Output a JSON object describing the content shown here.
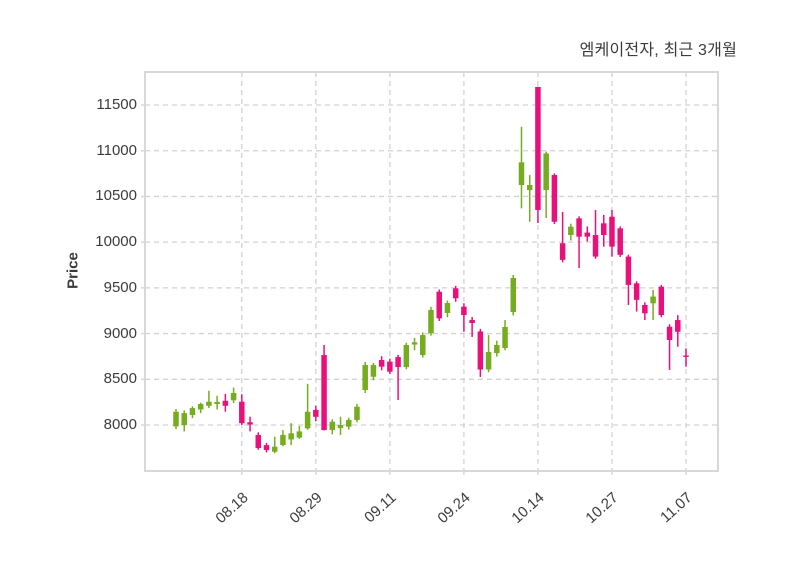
{
  "chart": {
    "title": "엠케이전자, 최근 3개월",
    "y_axis_label": "Price"
  },
  "colors": {
    "up": "#76ac1f",
    "down": "#e8117c",
    "grid": "#d2d2d2",
    "plot_border": "#d8d8d8",
    "text": "#3c3c3c",
    "background": "#ffffff"
  },
  "chart_data": {
    "type": "candlestick",
    "title": "엠케이전자, 최근 3개월",
    "ylabel": "Price",
    "ylim": [
      7497,
      11861
    ],
    "grid": "dashed",
    "legend_position": "none",
    "y_ticks": [
      8000,
      8500,
      9000,
      9500,
      10000,
      10500,
      11000,
      11500
    ],
    "x_tick_labels": [
      "08.18",
      "08.29",
      "09.11",
      "09.24",
      "10.14",
      "10.27",
      "11.07"
    ],
    "x_tick_indices": [
      8,
      17,
      26,
      35,
      44,
      53,
      62
    ],
    "up_color": "#76ac1f",
    "down_color": "#e8117c",
    "ohlc_order": [
      "open",
      "high",
      "low",
      "close"
    ],
    "candles": [
      [
        7985,
        8175,
        7955,
        8145
      ],
      [
        8000,
        8160,
        7930,
        8130
      ],
      [
        8110,
        8205,
        8075,
        8185
      ],
      [
        8170,
        8245,
        8130,
        8230
      ],
      [
        8210,
        8375,
        8185,
        8255
      ],
      [
        8230,
        8320,
        8170,
        8252
      ],
      [
        8265,
        8340,
        8145,
        8210
      ],
      [
        8270,
        8410,
        8240,
        8350
      ],
      [
        8255,
        8336,
        8000,
        8020
      ],
      [
        8030,
        8091,
        7930,
        8005
      ],
      [
        7890,
        7920,
        7730,
        7748
      ],
      [
        7780,
        7805,
        7700,
        7727
      ],
      [
        7708,
        7872,
        7690,
        7763
      ],
      [
        7781,
        7945,
        7768,
        7891
      ],
      [
        7842,
        8020,
        7781,
        7909
      ],
      [
        7862,
        7990,
        7848,
        7930
      ],
      [
        7963,
        8450,
        7948,
        8145
      ],
      [
        8165,
        8210,
        8040,
        8090
      ],
      [
        8765,
        8875,
        7940,
        7945
      ],
      [
        7945,
        8062,
        7898,
        8036
      ],
      [
        7966,
        8091,
        7891,
        8000
      ],
      [
        7982,
        8080,
        7950,
        8055
      ],
      [
        8055,
        8230,
        8030,
        8200
      ],
      [
        8383,
        8690,
        8350,
        8656
      ],
      [
        8528,
        8680,
        8490,
        8656
      ],
      [
        8711,
        8752,
        8598,
        8638
      ],
      [
        8693,
        8725,
        8558,
        8583
      ],
      [
        8743,
        8768,
        8273,
        8634
      ],
      [
        8634,
        8900,
        8610,
        8875
      ],
      [
        8880,
        8952,
        8818,
        8905
      ],
      [
        8765,
        9012,
        8738,
        8984
      ],
      [
        9003,
        9292,
        8978,
        9258
      ],
      [
        9458,
        9482,
        9138,
        9167
      ],
      [
        9225,
        9362,
        9178,
        9334
      ],
      [
        9495,
        9522,
        9348,
        9386
      ],
      [
        9294,
        9332,
        9020,
        9203
      ],
      [
        9148,
        9181,
        8963,
        9115
      ],
      [
        9023,
        9052,
        8525,
        8607
      ],
      [
        8607,
        8984,
        8578,
        8798
      ],
      [
        8787,
        8922,
        8748,
        8875
      ],
      [
        8842,
        9148,
        8818,
        9072
      ],
      [
        9236,
        9641,
        9198,
        9608
      ],
      [
        10625,
        11263,
        10370,
        10873
      ],
      [
        10570,
        10734,
        10223,
        10625
      ],
      [
        11697,
        11700,
        10209,
        10352
      ],
      [
        10570,
        10990,
        10264,
        10970
      ],
      [
        10734,
        10752,
        10198,
        10223
      ],
      [
        9988,
        10331,
        9778,
        9806
      ],
      [
        10078,
        10202,
        10018,
        10169
      ],
      [
        10260,
        10282,
        9716,
        10060
      ],
      [
        10105,
        10172,
        10008,
        10060
      ],
      [
        10078,
        10352,
        9818,
        9842
      ],
      [
        10206,
        10297,
        9951,
        10078
      ],
      [
        10278,
        10352,
        9842,
        9951
      ],
      [
        10151,
        10172,
        9838,
        9861
      ],
      [
        9842,
        9863,
        9313,
        9532
      ],
      [
        9550,
        9572,
        9241,
        9369
      ],
      [
        9313,
        9342,
        9148,
        9222
      ],
      [
        9331,
        9477,
        9148,
        9405
      ],
      [
        9513,
        9532,
        9178,
        9203
      ],
      [
        9075,
        9102,
        8602,
        8930
      ],
      [
        9148,
        9202,
        8856,
        9020
      ],
      [
        8760,
        8838,
        8638,
        8747
      ]
    ]
  }
}
